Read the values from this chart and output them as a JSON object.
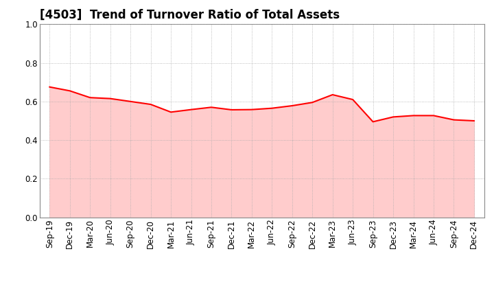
{
  "title": "[4503]  Trend of Turnover Ratio of Total Assets",
  "labels": [
    "Sep-19",
    "Dec-19",
    "Mar-20",
    "Jun-20",
    "Sep-20",
    "Dec-20",
    "Mar-21",
    "Jun-21",
    "Sep-21",
    "Dec-21",
    "Mar-22",
    "Jun-22",
    "Sep-22",
    "Dec-22",
    "Mar-23",
    "Jun-23",
    "Sep-23",
    "Dec-23",
    "Mar-24",
    "Jun-24",
    "Sep-24",
    "Dec-24"
  ],
  "values": [
    0.675,
    0.655,
    0.62,
    0.615,
    0.6,
    0.585,
    0.545,
    0.558,
    0.57,
    0.557,
    0.558,
    0.565,
    0.578,
    0.595,
    0.635,
    0.61,
    0.495,
    0.52,
    0.527,
    0.527,
    0.505,
    0.5
  ],
  "line_color": "#FF0000",
  "line_width": 1.5,
  "ylim": [
    0.0,
    1.0
  ],
  "yticks": [
    0.0,
    0.2,
    0.4,
    0.6,
    0.8,
    1.0
  ],
  "background_color": "#FFFFFF",
  "grid_color": "#AAAAAA",
  "title_fontsize": 12,
  "tick_fontsize": 8.5,
  "fill_color": "#FFCCCC"
}
